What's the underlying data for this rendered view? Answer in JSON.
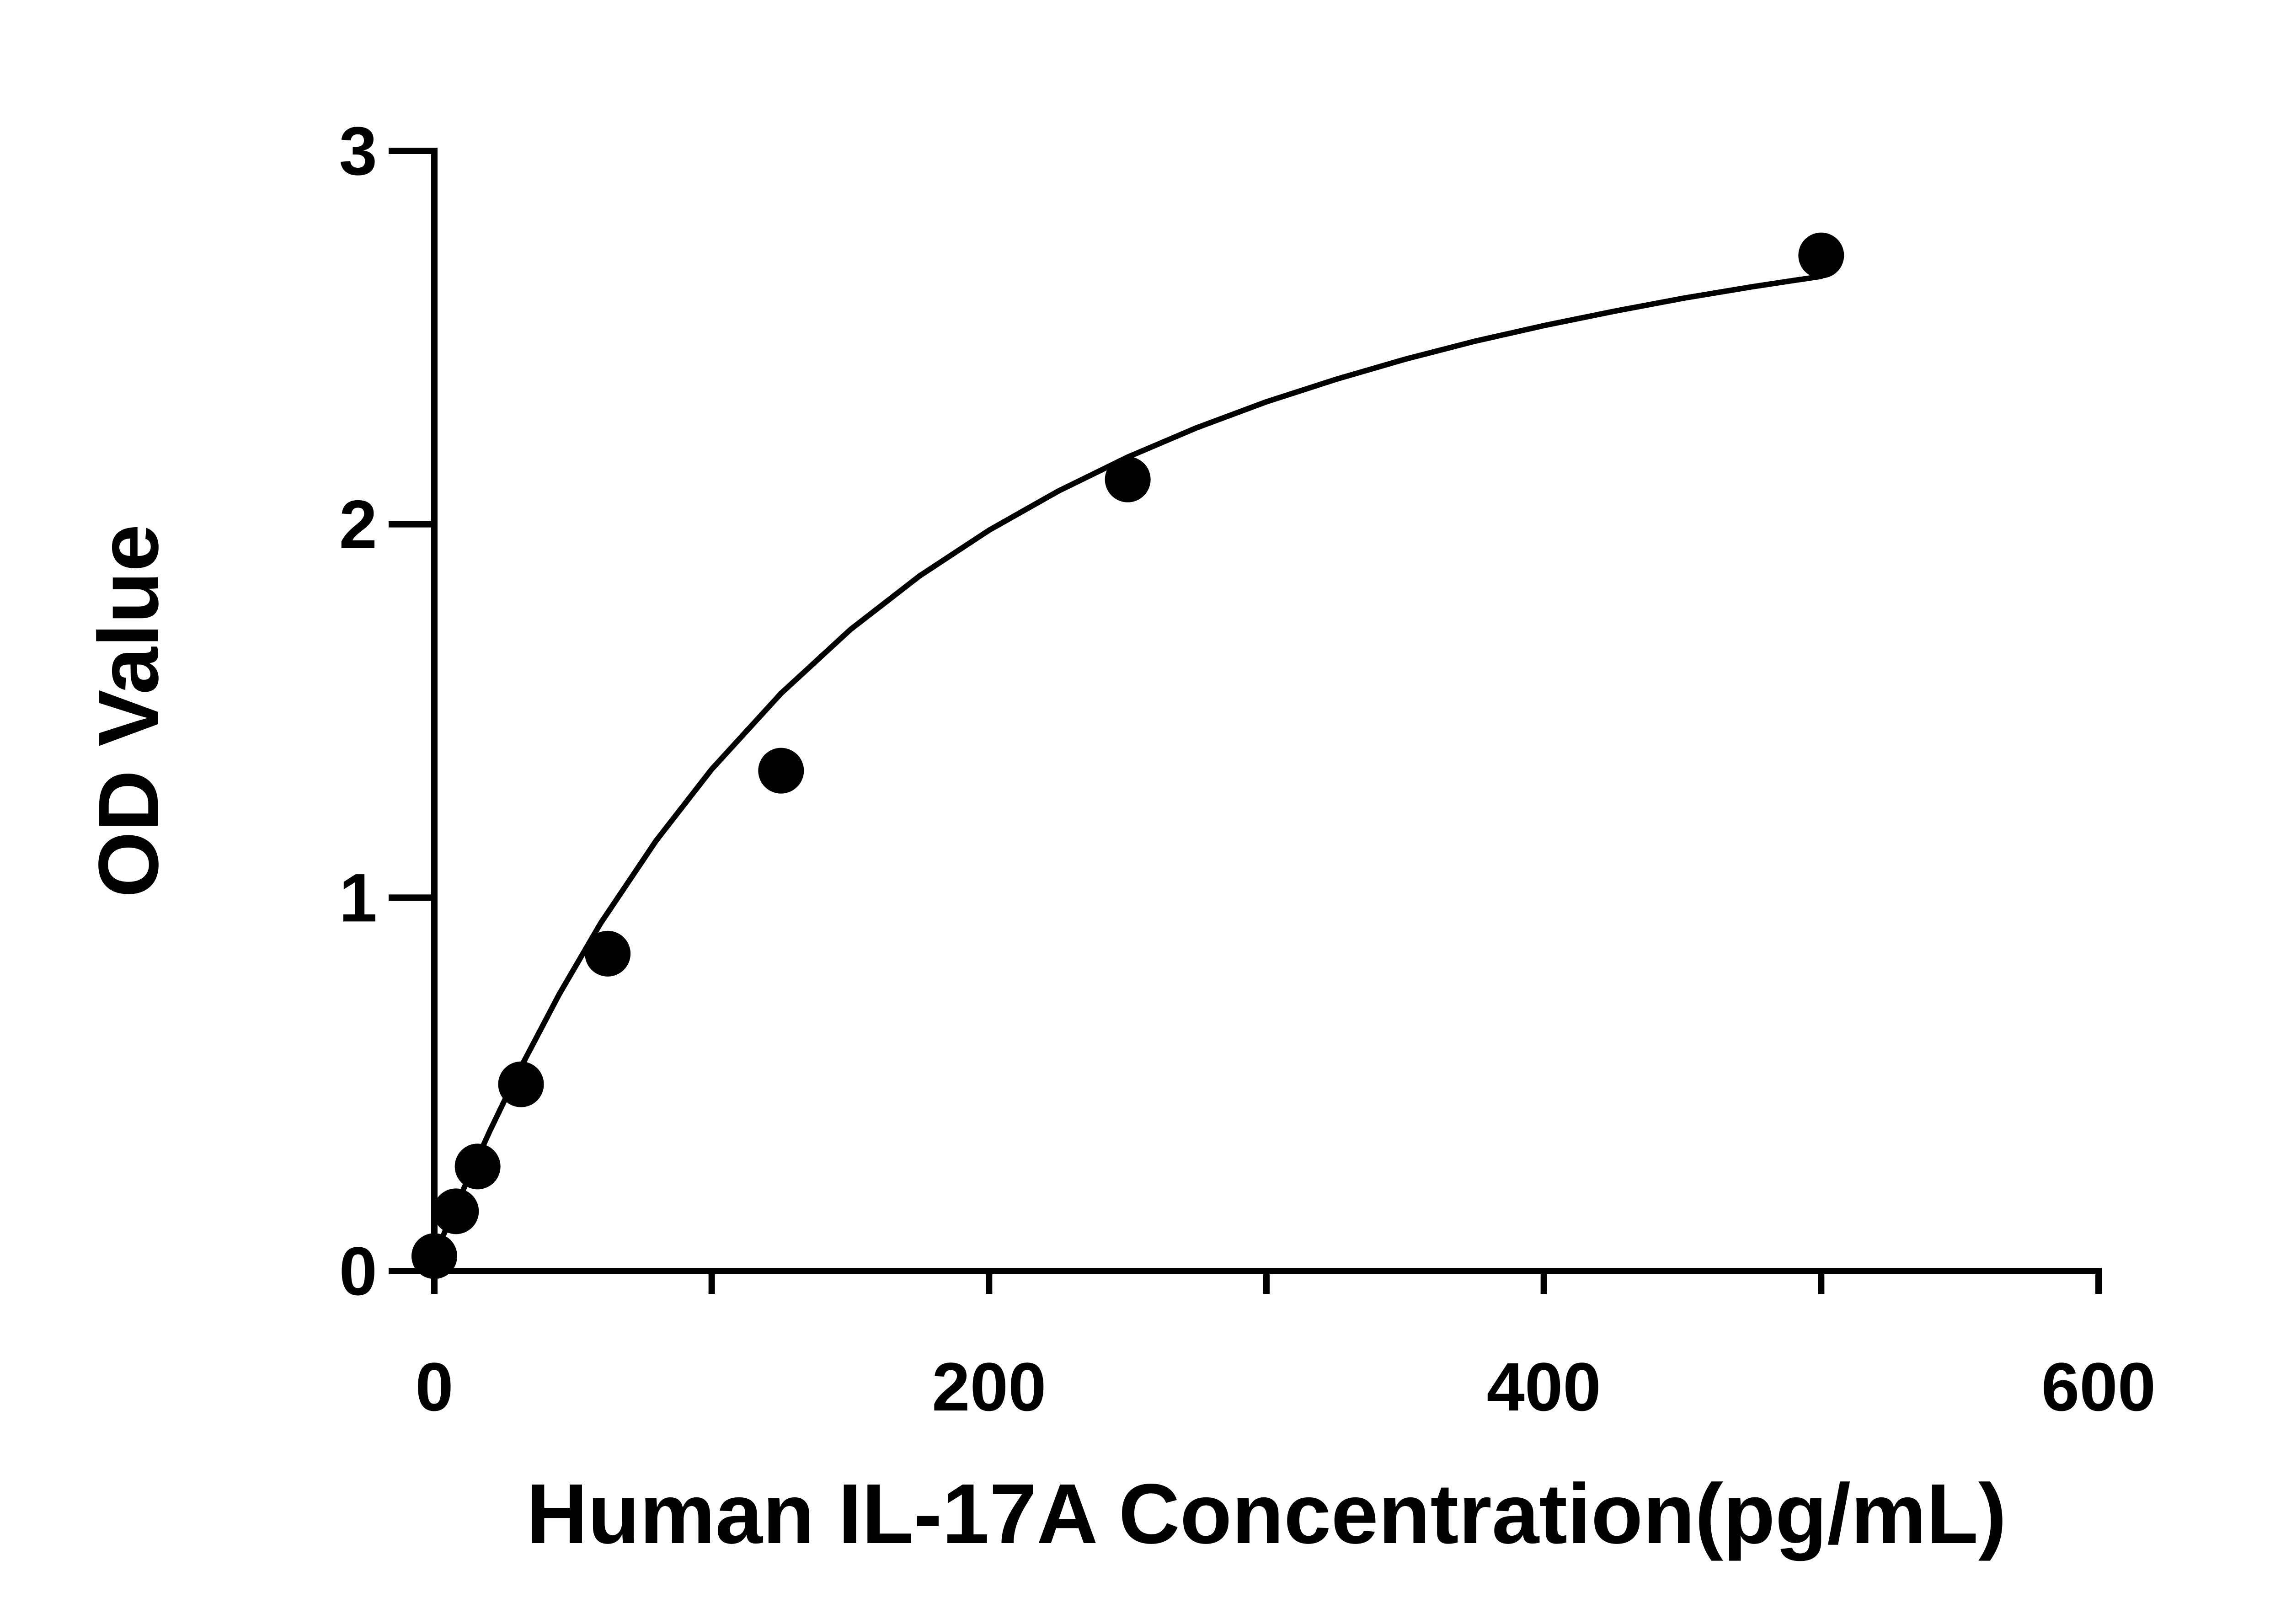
{
  "chart_data": {
    "type": "scatter",
    "title": "",
    "xlabel": "Human IL-17A Concentration(pg/mL)",
    "ylabel": "OD Value",
    "xlim": [
      0,
      600
    ],
    "ylim": [
      0,
      3
    ],
    "x_ticks": [
      0,
      200,
      400,
      600
    ],
    "x_minor_ticks": [
      100,
      300,
      500
    ],
    "y_ticks": [
      0,
      1,
      2,
      3
    ],
    "grid": false,
    "legend": "none",
    "series": [
      {
        "x": [
          0,
          7.8,
          15.6,
          31.25,
          62.5,
          125,
          250,
          500
        ],
        "y": [
          0.04,
          0.16,
          0.28,
          0.5,
          0.85,
          1.34,
          2.12,
          2.72
        ],
        "marker": "filled-circle",
        "color": "#000000"
      }
    ],
    "fit_curve": {
      "color": "#000000",
      "x": [
        0,
        5,
        10,
        20,
        30,
        45,
        60,
        80,
        100,
        125,
        150,
        175,
        200,
        225,
        250,
        275,
        300,
        325,
        350,
        375,
        400,
        425,
        450,
        475,
        500
      ],
      "y": [
        0.04,
        0.126,
        0.211,
        0.375,
        0.529,
        0.741,
        0.932,
        1.153,
        1.344,
        1.547,
        1.718,
        1.862,
        1.984,
        2.089,
        2.18,
        2.259,
        2.328,
        2.388,
        2.442,
        2.49,
        2.532,
        2.57,
        2.605,
        2.636,
        2.664
      ]
    }
  }
}
